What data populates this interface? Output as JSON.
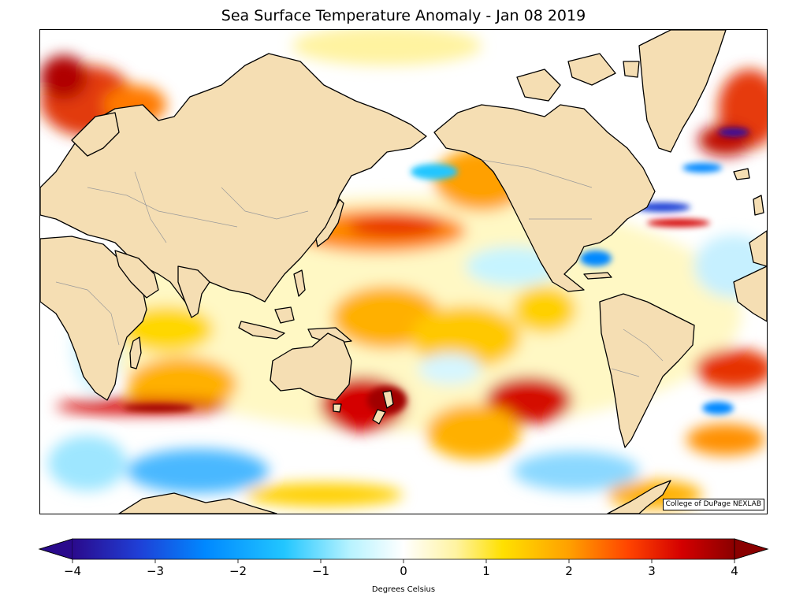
{
  "map": {
    "title": "Sea Surface Temperature Anomaly - Jan 08 2019",
    "credit": "College of DuPage NEXLAB",
    "land_color": "#f5deb3",
    "coast_color": "#000000",
    "border_color": "#999999"
  },
  "colorbar": {
    "label": "Degrees Celsius",
    "min": -4,
    "max": 4,
    "ticks": [
      {
        "value": -4,
        "label": "−4"
      },
      {
        "value": -3,
        "label": "−3"
      },
      {
        "value": -2,
        "label": "−2"
      },
      {
        "value": -1,
        "label": "−1"
      },
      {
        "value": 0,
        "label": "0"
      },
      {
        "value": 1,
        "label": "1"
      },
      {
        "value": 2,
        "label": "2"
      },
      {
        "value": 3,
        "label": "3"
      },
      {
        "value": 4,
        "label": "4"
      }
    ],
    "colors": [
      "#2a0a8c",
      "#1f3fd6",
      "#0088ff",
      "#22c6ff",
      "#b8f3ff",
      "#ffffff",
      "#fff3a0",
      "#ffe000",
      "#ffa000",
      "#ff4400",
      "#d40000",
      "#8a0000"
    ],
    "under_color": "#2a0a8c",
    "over_color": "#8a0000"
  }
}
